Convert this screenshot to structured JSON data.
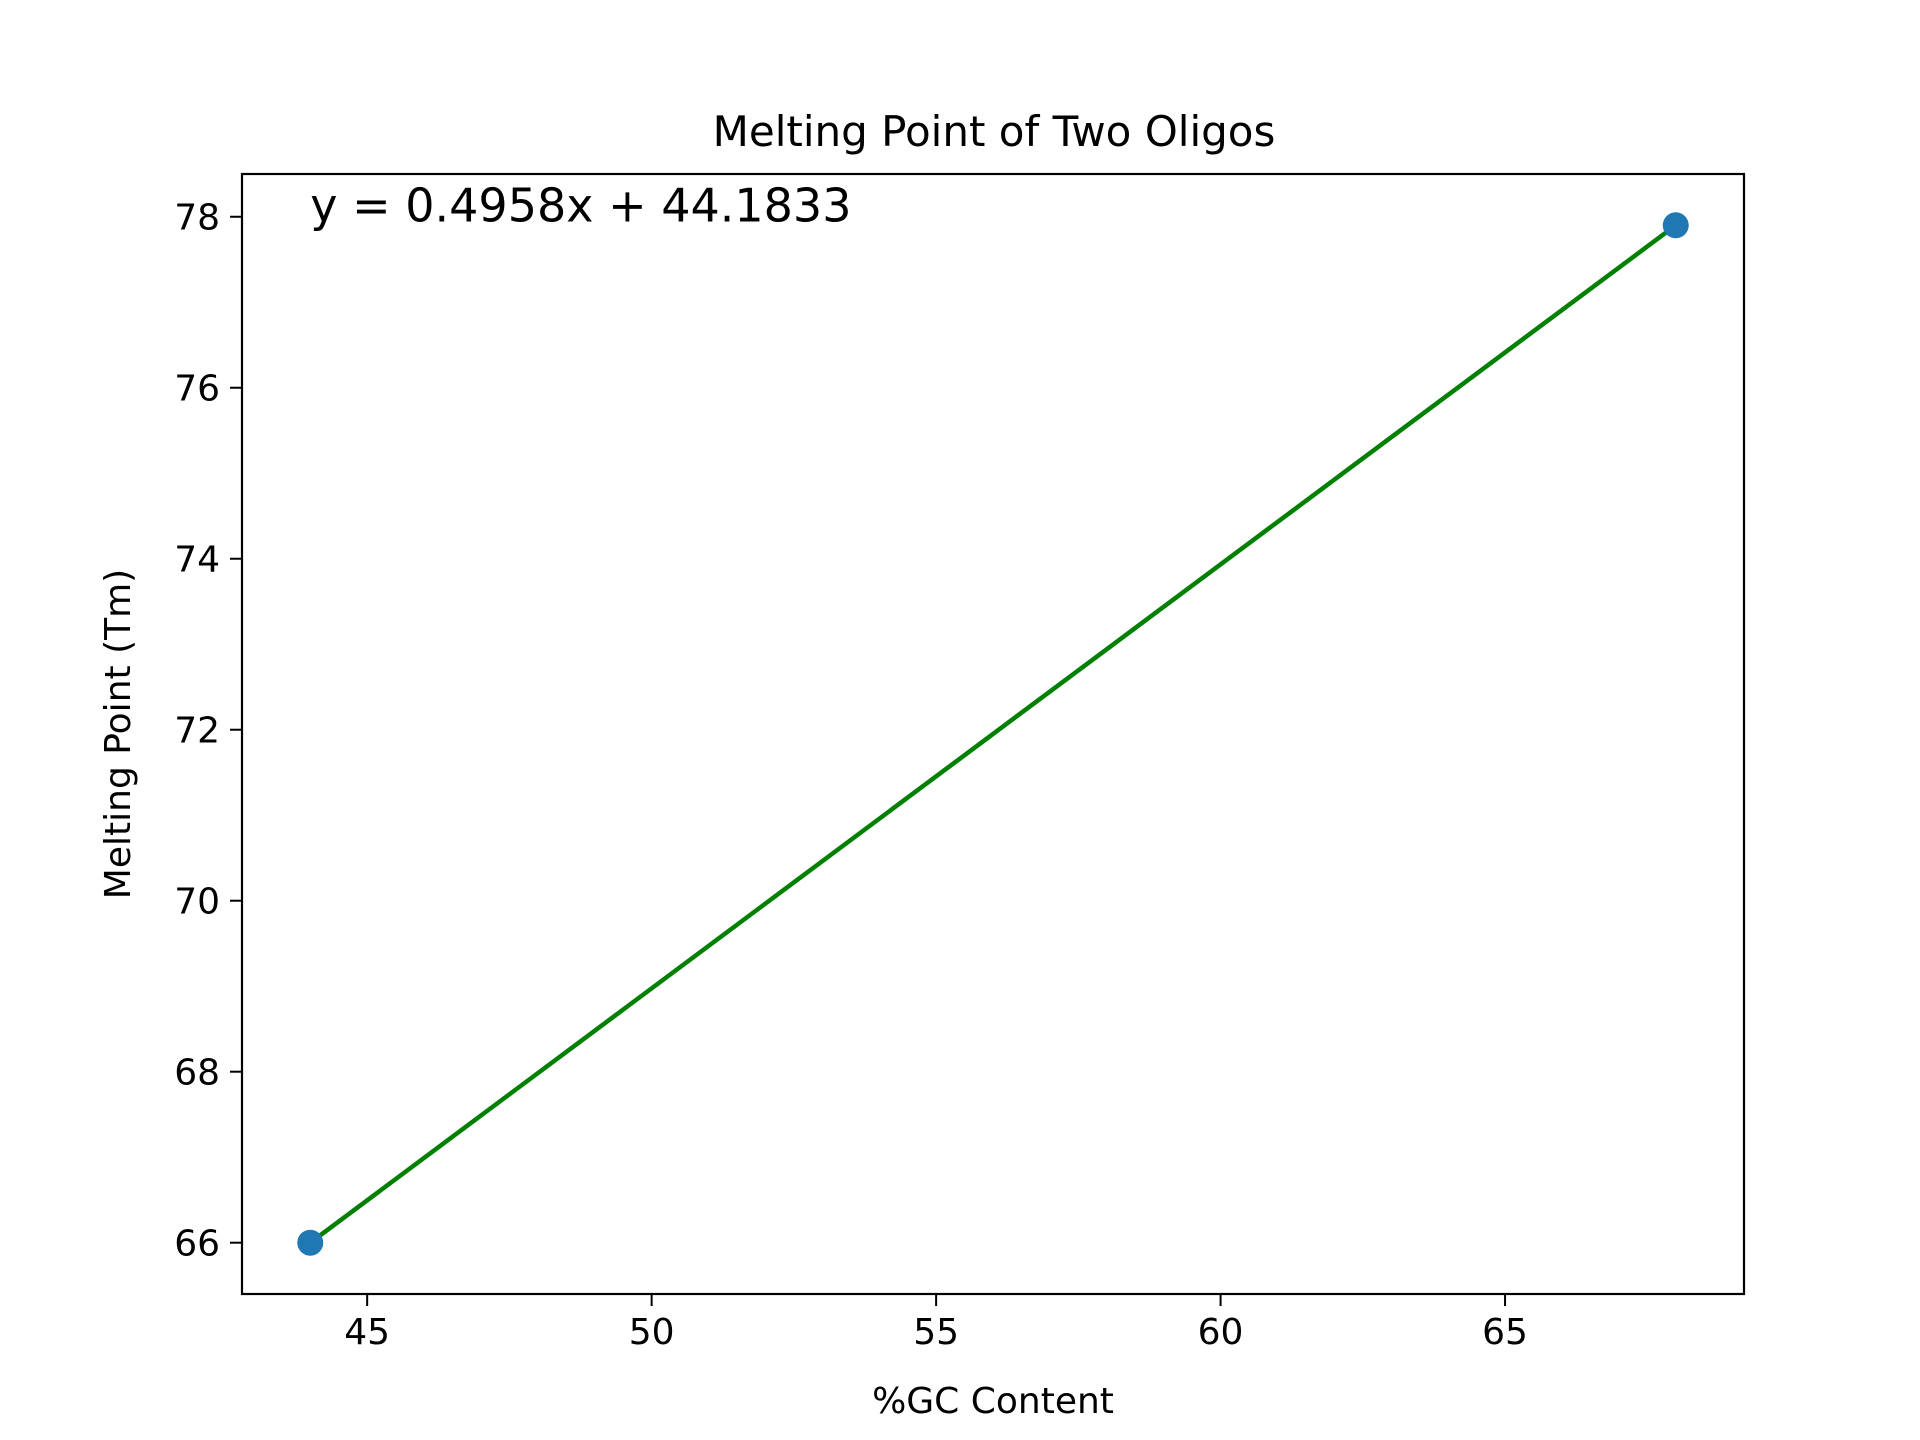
{
  "chart_data": {
    "type": "scatter",
    "title": "Melting Point of Two Oligos",
    "xlabel": "%GC Content",
    "ylabel": "Melting Point (Tm)",
    "xlim": [
      42.8,
      69.2
    ],
    "ylim": [
      65.4,
      78.5
    ],
    "xticks": [
      45,
      50,
      55,
      60,
      65
    ],
    "yticks": [
      66,
      68,
      70,
      72,
      74,
      76,
      78
    ],
    "grid": false,
    "series": [
      {
        "kind": "points",
        "color": "#1f77b4",
        "points": [
          {
            "x": 44,
            "y": 66.0
          },
          {
            "x": 68,
            "y": 77.9
          }
        ]
      },
      {
        "kind": "fit-line",
        "color": "#008000",
        "slope": 0.4958,
        "intercept": 44.1833,
        "x_range": [
          44,
          68
        ]
      }
    ],
    "annotations": [
      {
        "text": "y = 0.4958x + 44.1833",
        "x": 44,
        "y": 77.9,
        "color": "#008000"
      }
    ]
  }
}
